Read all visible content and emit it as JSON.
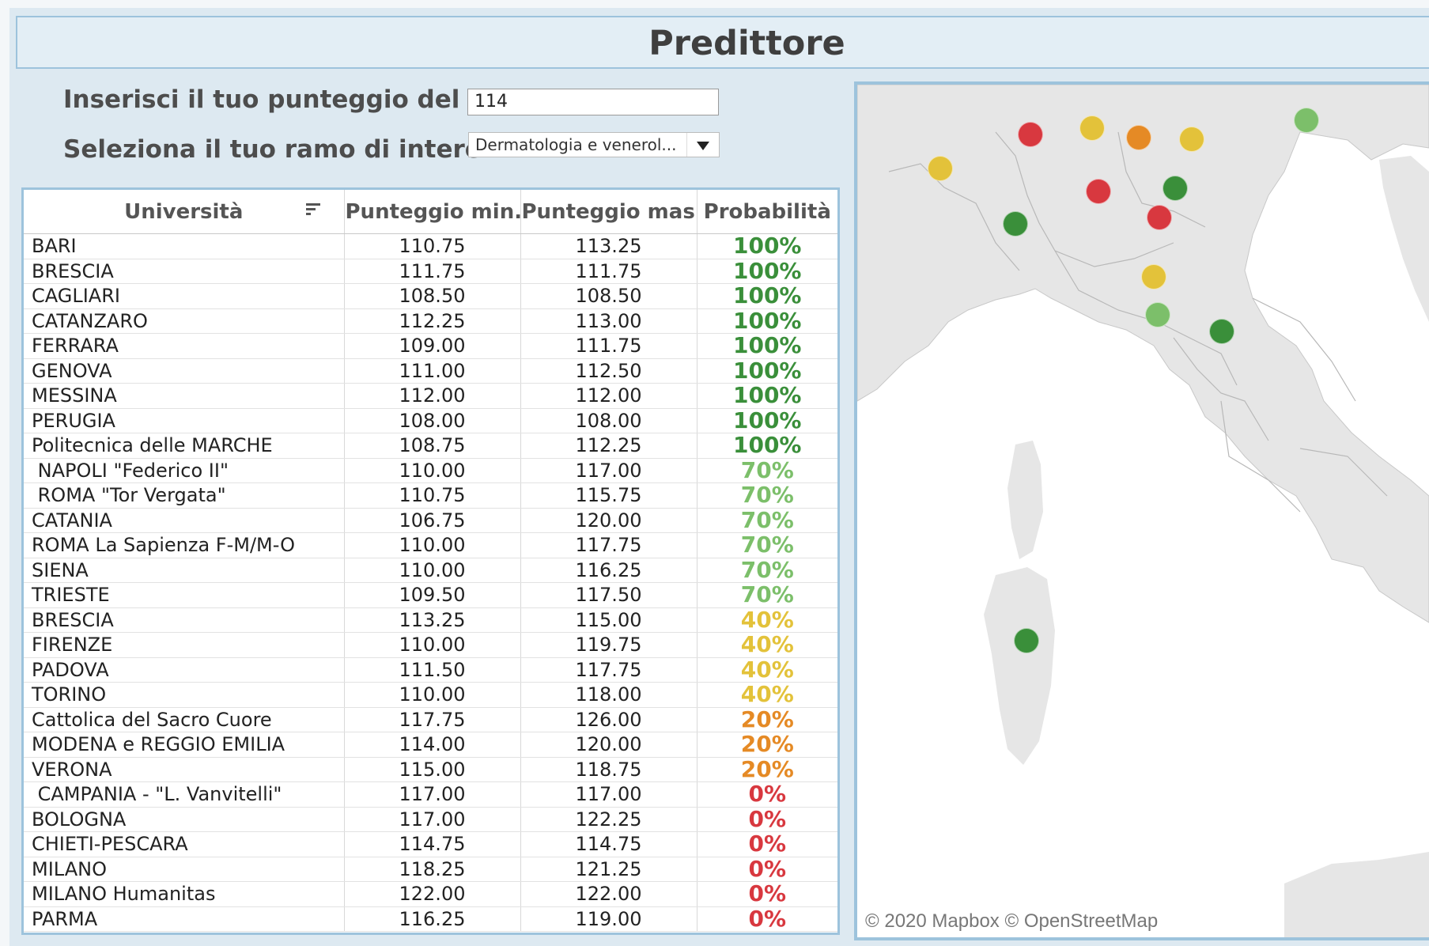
{
  "title": "Predittore",
  "params": {
    "score_label": "Inserisci il tuo punteggio del t..",
    "score_value": "114",
    "branch_label": "Seleziona il tuo ramo di intere..",
    "branch_value": "Dermatologia e venerol..."
  },
  "table": {
    "headers": [
      "Università",
      "Punteggio min..",
      "Punteggio mas..",
      "Probabilità"
    ],
    "rows": [
      {
        "name": "BARI",
        "min": "110.75",
        "max": "113.25",
        "prob": "100%"
      },
      {
        "name": "BRESCIA",
        "min": "111.75",
        "max": "111.75",
        "prob": "100%"
      },
      {
        "name": "CAGLIARI",
        "min": "108.50",
        "max": "108.50",
        "prob": "100%"
      },
      {
        "name": "CATANZARO",
        "min": "112.25",
        "max": "113.00",
        "prob": "100%"
      },
      {
        "name": "FERRARA",
        "min": "109.00",
        "max": "111.75",
        "prob": "100%"
      },
      {
        "name": "GENOVA",
        "min": "111.00",
        "max": "112.50",
        "prob": "100%"
      },
      {
        "name": "MESSINA",
        "min": "112.00",
        "max": "112.00",
        "prob": "100%"
      },
      {
        "name": "PERUGIA",
        "min": "108.00",
        "max": "108.00",
        "prob": "100%"
      },
      {
        "name": "Politecnica delle MARCHE",
        "min": "108.75",
        "max": "112.25",
        "prob": "100%"
      },
      {
        "name": " NAPOLI \"Federico II\"",
        "min": "110.00",
        "max": "117.00",
        "prob": "70%"
      },
      {
        "name": " ROMA \"Tor Vergata\"",
        "min": "110.75",
        "max": "115.75",
        "prob": "70%"
      },
      {
        "name": "CATANIA",
        "min": "106.75",
        "max": "120.00",
        "prob": "70%"
      },
      {
        "name": "ROMA La Sapienza F-M/M-O",
        "min": "110.00",
        "max": "117.75",
        "prob": "70%"
      },
      {
        "name": "SIENA",
        "min": "110.00",
        "max": "116.25",
        "prob": "70%"
      },
      {
        "name": "TRIESTE",
        "min": "109.50",
        "max": "117.50",
        "prob": "70%"
      },
      {
        "name": "BRESCIA",
        "min": "113.25",
        "max": "115.00",
        "prob": "40%"
      },
      {
        "name": "FIRENZE",
        "min": "110.00",
        "max": "119.75",
        "prob": "40%"
      },
      {
        "name": "PADOVA",
        "min": "111.50",
        "max": "117.75",
        "prob": "40%"
      },
      {
        "name": "TORINO",
        "min": "110.00",
        "max": "118.00",
        "prob": "40%"
      },
      {
        "name": "Cattolica del Sacro Cuore",
        "min": "117.75",
        "max": "126.00",
        "prob": "20%"
      },
      {
        "name": "MODENA e REGGIO EMILIA",
        "min": "114.00",
        "max": "120.00",
        "prob": "20%"
      },
      {
        "name": "VERONA",
        "min": "115.00",
        "max": "118.75",
        "prob": "20%"
      },
      {
        "name": " CAMPANIA - \"L. Vanvitelli\"",
        "min": "117.00",
        "max": "117.00",
        "prob": "0%"
      },
      {
        "name": "BOLOGNA",
        "min": "117.00",
        "max": "122.25",
        "prob": "0%"
      },
      {
        "name": "CHIETI-PESCARA",
        "min": "114.75",
        "max": "114.75",
        "prob": "0%"
      },
      {
        "name": "MILANO",
        "min": "118.25",
        "max": "121.25",
        "prob": "0%"
      },
      {
        "name": "MILANO Humanitas",
        "min": "122.00",
        "max": "122.00",
        "prob": "0%"
      },
      {
        "name": "PARMA",
        "min": "116.25",
        "max": "119.00",
        "prob": "0%"
      }
    ]
  },
  "prob_colors": {
    "100%": "#3a8f3a",
    "70%": "#7cbf6a",
    "40%": "#e3c23a",
    "20%": "#e58a25",
    "0%": "#d8383f"
  },
  "map": {
    "credit": "© 2020 Mapbox © OpenStreetMap",
    "markers": [
      {
        "prob": "0%"
      },
      {
        "prob": "40%"
      },
      {
        "prob": "20%"
      },
      {
        "prob": "40%"
      },
      {
        "prob": "70%"
      },
      {
        "prob": "40%"
      },
      {
        "prob": "0%"
      },
      {
        "prob": "100%"
      },
      {
        "prob": "0%"
      },
      {
        "prob": "100%"
      },
      {
        "prob": "40%"
      },
      {
        "prob": "70%"
      },
      {
        "prob": "100%"
      },
      {
        "prob": "100%"
      }
    ]
  }
}
